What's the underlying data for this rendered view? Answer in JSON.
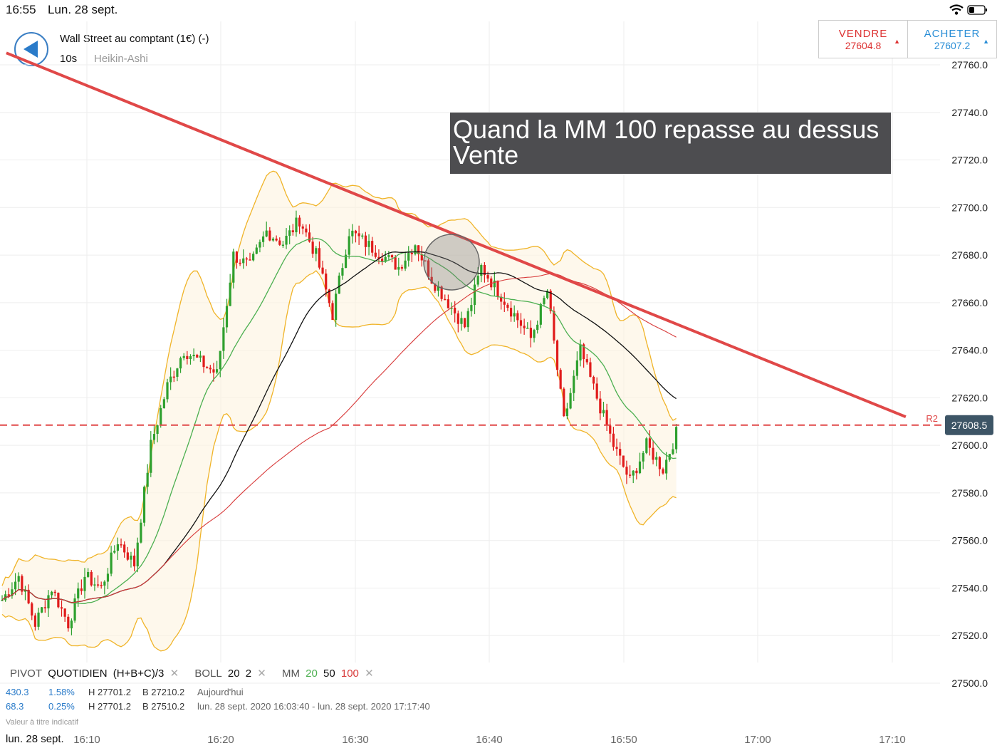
{
  "status": {
    "time": "16:55",
    "date": "Lun. 28 sept."
  },
  "header": {
    "instrument": "Wall Street au comptant (1€) (-)",
    "interval": "10s",
    "chart_type": "Heikin-Ashi"
  },
  "trade": {
    "sell_label": "VENDRE",
    "sell_price": "27604.8",
    "buy_label": "ACHETER",
    "buy_price": "27607.2"
  },
  "annotation": {
    "line1": "Quand la MM 100 repasse au dessus",
    "line2": "Vente"
  },
  "indicators": {
    "pivot": {
      "label": "PIVOT",
      "period": "QUOTIDIEN",
      "formula": "(H+B+C)/3"
    },
    "boll": {
      "label": "BOLL",
      "p1": "20",
      "p2": "2"
    },
    "mm": {
      "label": "MM",
      "p1": "20",
      "p2": "50",
      "p3": "100"
    }
  },
  "info": [
    {
      "v1": "430.3",
      "v2": "1.58%",
      "high": "H 27701.2",
      "low": "B 27210.2",
      "desc": "Aujourd'hui"
    },
    {
      "v1": "68.3",
      "v2": "0.25%",
      "high": "H 27701.2",
      "low": "B 27510.2",
      "desc": "lun. 28 sept. 2020 16:03:40 - lun. 28 sept. 2020 17:17:40"
    }
  ],
  "footnote": "Valeur à titre indicatif",
  "xaxis_date": "lun. 28 sept.",
  "colors": {
    "up": "#2ea02e",
    "down": "#e01b1b",
    "trend": "#e04848",
    "mm20": "#4caf50",
    "mm50": "#111111",
    "mm100": "#d83a3a",
    "boll": "#f0b429"
  },
  "chart_data": {
    "type": "candlestick",
    "y_axis": {
      "ticks": [
        "27760.0",
        "27740.0",
        "27720.0",
        "27700.0",
        "27680.0",
        "27660.0",
        "27640.0",
        "27620.0",
        "27600.0",
        "27580.0",
        "27560.0",
        "27540.0",
        "27520.0",
        "27500.0"
      ],
      "min": 27500,
      "max": 27760
    },
    "x_axis": {
      "ticks": [
        "16:10",
        "16:20",
        "16:30",
        "16:40",
        "16:50",
        "17:00",
        "17:10"
      ]
    },
    "current_price": {
      "value": "27608.5"
    },
    "pivot_line": {
      "label": "R2",
      "value": 27608.5
    },
    "trend_line": {
      "start": {
        "time": "16:04",
        "value": 27765
      },
      "end": {
        "time": "17:11",
        "value": 27612
      }
    },
    "price_path": [
      [
        0,
        27535
      ],
      [
        5,
        27545
      ],
      [
        10,
        27525
      ],
      [
        15,
        27540
      ],
      [
        20,
        27525
      ],
      [
        25,
        27545
      ],
      [
        30,
        27540
      ],
      [
        35,
        27560
      ],
      [
        40,
        27550
      ],
      [
        45,
        27600
      ],
      [
        50,
        27625
      ],
      [
        55,
        27640
      ],
      [
        60,
        27635
      ],
      [
        65,
        27630
      ],
      [
        70,
        27680
      ],
      [
        75,
        27675
      ],
      [
        80,
        27690
      ],
      [
        85,
        27685
      ],
      [
        90,
        27695
      ],
      [
        95,
        27680
      ],
      [
        100,
        27655
      ],
      [
        105,
        27690
      ],
      [
        110,
        27685
      ],
      [
        115,
        27680
      ],
      [
        120,
        27675
      ],
      [
        125,
        27685
      ],
      [
        130,
        27670
      ],
      [
        135,
        27660
      ],
      [
        140,
        27650
      ],
      [
        145,
        27675
      ],
      [
        150,
        27665
      ],
      [
        155,
        27655
      ],
      [
        160,
        27645
      ],
      [
        165,
        27665
      ],
      [
        170,
        27610
      ],
      [
        175,
        27640
      ],
      [
        180,
        27620
      ],
      [
        185,
        27600
      ],
      [
        190,
        27585
      ],
      [
        195,
        27600
      ],
      [
        200,
        27590
      ],
      [
        204,
        27605
      ]
    ]
  }
}
